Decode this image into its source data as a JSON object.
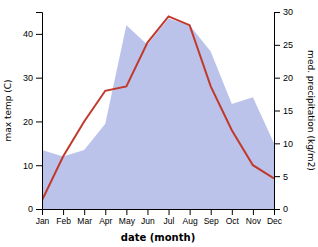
{
  "chart_data": {
    "type": "line",
    "categories": [
      "Jan",
      "Feb",
      "Mar",
      "Apr",
      "May",
      "Jun",
      "Jul",
      "Aug",
      "Sep",
      "Oct",
      "Nov",
      "Dec"
    ],
    "series": [
      {
        "type": "area",
        "axis": "y2",
        "color": "#b0b8e8",
        "values": [
          9,
          8,
          9,
          13,
          28,
          25,
          29,
          28,
          24,
          16,
          17,
          10
        ]
      },
      {
        "type": "line",
        "color": "#c0392b",
        "values": [
          2,
          12,
          20,
          27,
          28,
          38,
          44,
          42,
          28,
          18,
          10,
          7
        ]
      }
    ],
    "xlabel": "date (month)",
    "ylabel": "max temp (C)",
    "y2label": "med. precipitation (kg/m2)",
    "ylim": [
      0,
      45
    ],
    "yticks": [
      0,
      10,
      20,
      30,
      40
    ],
    "y2lim": [
      0,
      30
    ],
    "y2ticks": [
      0,
      5,
      10,
      15,
      20,
      25,
      30
    ],
    "grid": false
  }
}
